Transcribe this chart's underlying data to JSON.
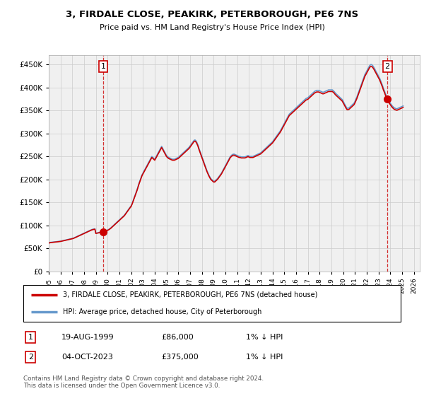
{
  "title": "3, FIRDALE CLOSE, PEAKIRK, PETERBOROUGH, PE6 7NS",
  "subtitle": "Price paid vs. HM Land Registry's House Price Index (HPI)",
  "ytick_values": [
    0,
    50000,
    100000,
    150000,
    200000,
    250000,
    300000,
    350000,
    400000,
    450000
  ],
  "ylim": [
    0,
    470000
  ],
  "xlim_start": 1995.0,
  "xlim_end": 2026.5,
  "transaction1": {
    "date_num": 1999.63,
    "price": 86000,
    "label": "1"
  },
  "transaction2": {
    "date_num": 2023.75,
    "price": 375000,
    "label": "2"
  },
  "vline1_x": 1999.63,
  "vline2_x": 2023.75,
  "legend_line1": "3, FIRDALE CLOSE, PEAKIRK, PETERBOROUGH, PE6 7NS (detached house)",
  "legend_line2": "HPI: Average price, detached house, City of Peterborough",
  "table_row1": [
    "1",
    "19-AUG-1999",
    "£86,000",
    "1% ↓ HPI"
  ],
  "table_row2": [
    "2",
    "04-OCT-2023",
    "£375,000",
    "1% ↓ HPI"
  ],
  "footnote": "Contains HM Land Registry data © Crown copyright and database right 2024.\nThis data is licensed under the Open Government Licence v3.0.",
  "line_color_red": "#cc0000",
  "line_color_blue": "#6699cc",
  "vline_color": "#cc0000",
  "grid_color": "#cccccc",
  "plot_bg_color": "#f0f0f0",
  "hpi_prices": [
    62000,
    62500,
    63000,
    63200,
    63500,
    63800,
    64000,
    64200,
    64500,
    64800,
    65000,
    65200,
    65500,
    66000,
    66500,
    67000,
    67500,
    68000,
    68500,
    69000,
    69500,
    70000,
    70500,
    71000,
    71500,
    72000,
    73000,
    74000,
    75000,
    76000,
    77000,
    78000,
    79000,
    80000,
    81000,
    82000,
    83000,
    84000,
    85000,
    86000,
    87000,
    88000,
    89000,
    90000,
    91000,
    91500,
    92000,
    92500,
    83000,
    83500,
    84000,
    84500,
    85000,
    85500,
    86000,
    86500,
    87000,
    87500,
    88000,
    89000,
    90000,
    91000,
    92500,
    94000,
    96000,
    98000,
    100000,
    102000,
    104000,
    106000,
    108000,
    110000,
    112000,
    114000,
    116000,
    118000,
    120000,
    122000,
    125000,
    128000,
    131000,
    134000,
    137000,
    140000,
    143000,
    148000,
    154000,
    160000,
    166000,
    172000,
    178000,
    185000,
    192000,
    198000,
    204000,
    210000,
    214000,
    218000,
    222000,
    226000,
    230000,
    234000,
    238000,
    242000,
    246000,
    250000,
    248000,
    246000,
    244000,
    248000,
    252000,
    256000,
    260000,
    264000,
    268000,
    272000,
    268000,
    264000,
    260000,
    256000,
    252000,
    250000,
    248000,
    247000,
    246000,
    245000,
    244000,
    244000,
    244000,
    245000,
    246000,
    247000,
    248000,
    250000,
    252000,
    254000,
    256000,
    258000,
    260000,
    262000,
    264000,
    266000,
    268000,
    270000,
    273000,
    276000,
    279000,
    282000,
    285000,
    286000,
    284000,
    280000,
    275000,
    268000,
    262000,
    256000,
    250000,
    244000,
    238000,
    232000,
    226000,
    220000,
    215000,
    210000,
    206000,
    202000,
    200000,
    198000,
    196000,
    196000,
    198000,
    200000,
    202000,
    205000,
    208000,
    211000,
    214000,
    218000,
    222000,
    226000,
    230000,
    234000,
    238000,
    242000,
    246000,
    250000,
    252000,
    254000,
    255000,
    255000,
    254000,
    253000,
    252000,
    251000,
    250000,
    250000,
    249000,
    249000,
    249000,
    249000,
    249000,
    250000,
    251000,
    252000,
    251000,
    250000,
    250000,
    250000,
    250000,
    251000,
    252000,
    253000,
    254000,
    255000,
    256000,
    257000,
    258000,
    260000,
    262000,
    264000,
    266000,
    268000,
    270000,
    272000,
    274000,
    276000,
    278000,
    280000,
    282000,
    285000,
    288000,
    291000,
    294000,
    297000,
    300000,
    303000,
    306000,
    310000,
    314000,
    318000,
    322000,
    326000,
    330000,
    334000,
    338000,
    342000,
    344000,
    346000,
    348000,
    350000,
    352000,
    354000,
    356000,
    358000,
    360000,
    362000,
    364000,
    366000,
    368000,
    370000,
    372000,
    374000,
    376000,
    377000,
    378000,
    380000,
    382000,
    384000,
    386000,
    388000,
    390000,
    392000,
    393000,
    394000,
    394000,
    394000,
    393000,
    392000,
    391000,
    390000,
    390000,
    391000,
    392000,
    393000,
    394000,
    395000,
    395000,
    395000,
    395000,
    395000,
    393000,
    391000,
    388000,
    386000,
    384000,
    382000,
    380000,
    378000,
    376000,
    374000,
    370000,
    366000,
    362000,
    358000,
    355000,
    355000,
    356000,
    358000,
    360000,
    362000,
    364000,
    366000,
    370000,
    375000,
    380000,
    386000,
    392000,
    398000,
    404000,
    410000,
    416000,
    422000,
    428000,
    432000,
    436000,
    440000,
    444000,
    448000,
    450000,
    450000,
    448000,
    445000,
    441000,
    437000,
    433000,
    429000,
    425000,
    421000,
    416000,
    410000,
    405000,
    398000,
    393000,
    387000,
    382000,
    376000,
    372000,
    369000,
    366000,
    363000,
    360000,
    358000,
    356000,
    355000,
    354000,
    354000,
    355000,
    356000,
    357000,
    358000,
    359000,
    360000
  ],
  "hpi_start_year": 1995,
  "hpi_months": 12,
  "price_years": [
    1999.63,
    2023.75
  ],
  "price_prices": [
    86000,
    375000
  ],
  "xtick_years": [
    1995,
    1996,
    1997,
    1998,
    1999,
    2000,
    2001,
    2002,
    2003,
    2004,
    2005,
    2006,
    2007,
    2008,
    2009,
    2010,
    2011,
    2012,
    2013,
    2014,
    2015,
    2016,
    2017,
    2018,
    2019,
    2020,
    2021,
    2022,
    2023,
    2024,
    2025,
    2026
  ]
}
